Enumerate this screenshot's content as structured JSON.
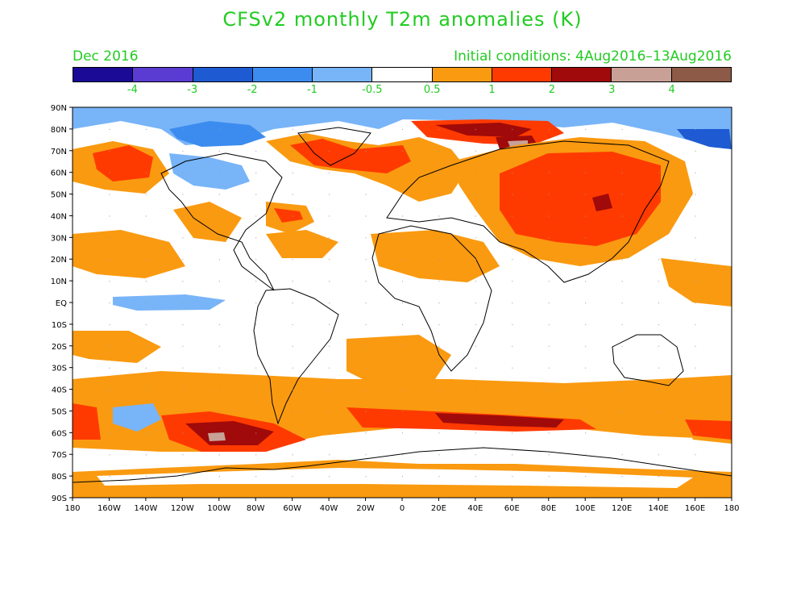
{
  "header": {
    "title": "CFSv2 monthly T2m anomalies (K)",
    "valid_month": "Dec 2016",
    "initial_conditions": "Initial conditions: 4Aug2016–13Aug2016"
  },
  "colorbar": {
    "colors": [
      "#1a0a96",
      "#5a3cd2",
      "#1e5ad2",
      "#3c8cf0",
      "#78b4f8",
      "#ffffff",
      "#fa9a10",
      "#ff3a00",
      "#a00a0a",
      "#c8a096",
      "#8c5a46"
    ],
    "labels": [
      "-4",
      "-3",
      "-2",
      "-1",
      "-0.5",
      "0.5",
      "1",
      "2",
      "3",
      "4"
    ]
  },
  "map": {
    "lat_labels": [
      "90N",
      "80N",
      "70N",
      "60N",
      "50N",
      "40N",
      "30N",
      "20N",
      "10N",
      "EQ",
      "10S",
      "20S",
      "30S",
      "40S",
      "50S",
      "60S",
      "70S",
      "80S",
      "90S"
    ],
    "lon_labels": [
      "180",
      "160W",
      "140W",
      "120W",
      "100W",
      "80W",
      "60W",
      "40W",
      "20W",
      "0",
      "20E",
      "40E",
      "60E",
      "80E",
      "100E",
      "120E",
      "140E",
      "160E",
      "180"
    ]
  }
}
